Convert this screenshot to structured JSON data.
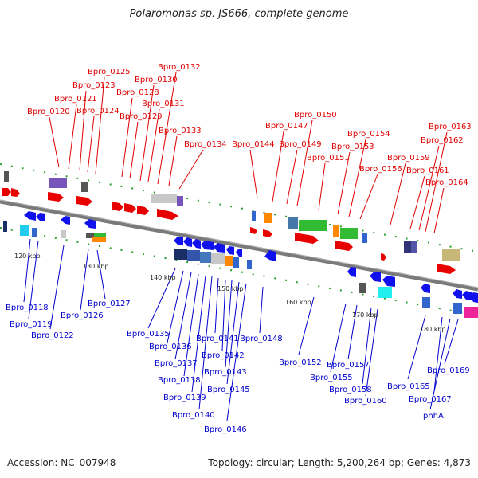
{
  "title": "Polaromonas sp. JS666, complete genome",
  "footer": {
    "accession": "Accession: NC_007948",
    "topology": "Topology: circular; Length: 5,200,264 bp; Genes: 4,873"
  },
  "ticks": [
    "120 kbp",
    "130 kbp",
    "140 kbp",
    "150 kbp",
    "160 kbp",
    "170 kbp",
    "180 kbp"
  ],
  "forward_labels": [
    "Bpro_0120",
    "Bpro_0121",
    "Bpro_0123",
    "Bpro_0124",
    "Bpro_0125",
    "Bpro_0128",
    "Bpro_0129",
    "Bpro_0130",
    "Bpro_0131",
    "Bpro_0132",
    "Bpro_0133",
    "Bpro_0134",
    "Bpro_0144",
    "Bpro_0147",
    "Bpro_0149",
    "Bpro_0150",
    "Bpro_0151",
    "Bpro_0153",
    "Bpro_0154",
    "Bpro_0156",
    "Bpro_0159",
    "Bpro_0161",
    "Bpro_0162",
    "Bpro_0163",
    "Bpro_0164"
  ],
  "reverse_labels": [
    "Bpro_0118",
    "Bpro_0119",
    "Bpro_0122",
    "Bpro_0126",
    "Bpro_0127",
    "Bpro_0135",
    "Bpro_0136",
    "Bpro_0137",
    "Bpro_0138",
    "Bpro_0139",
    "Bpro_0140",
    "Bpro_0141",
    "Bpro_0142",
    "Bpro_0143",
    "Bpro_0145",
    "Bpro_0146",
    "Bpro_0148",
    "Bpro_0152",
    "Bpro_0155",
    "Bpro_0157",
    "Bpro_0158",
    "Bpro_0160",
    "Bpro_0165",
    "Bpro_0167",
    "Bpro_0169",
    "phhA"
  ],
  "colors": {
    "forward": "#e00000",
    "reverse": "#0000cc",
    "backbone": "#808080"
  }
}
